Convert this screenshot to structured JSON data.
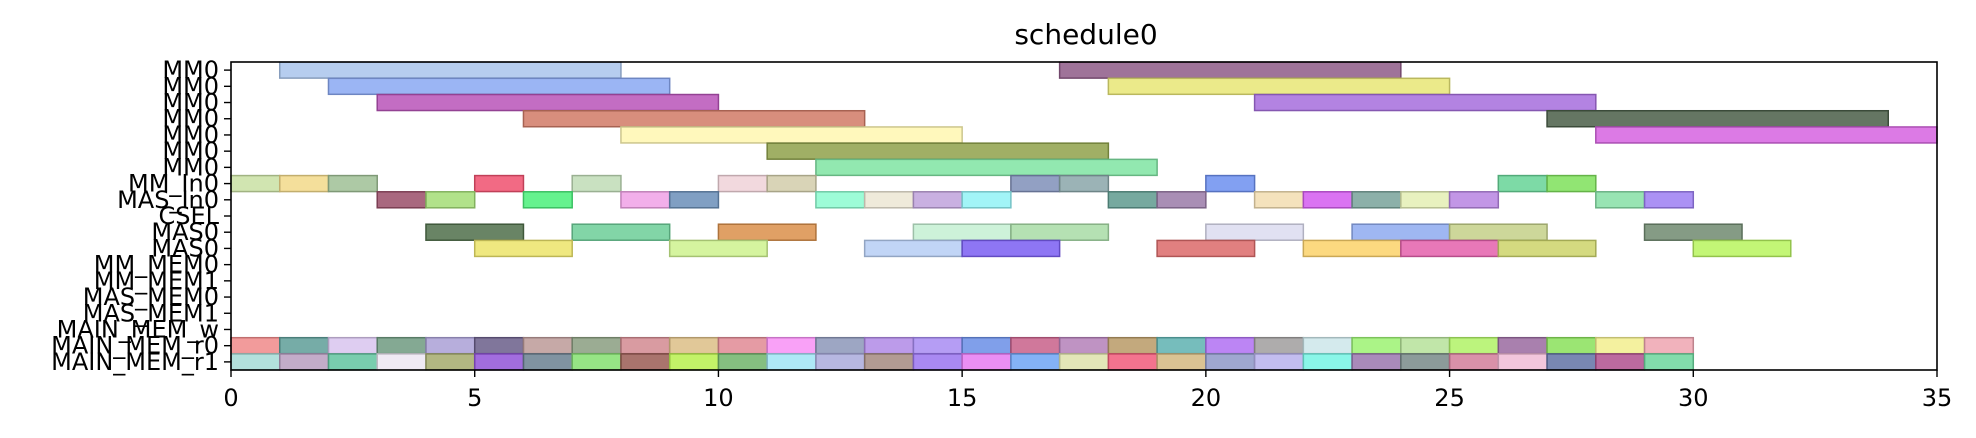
{
  "chart_data": {
    "type": "gantt",
    "title": "schedule0",
    "xlabel": "",
    "ylabel": "",
    "xlim": [
      0,
      35
    ],
    "xticks": [
      0,
      5,
      10,
      15,
      20,
      25,
      30,
      35
    ],
    "grid": false,
    "legend": "none",
    "rows": [
      {
        "label": "MM0",
        "tasks": [
          {
            "start": 1,
            "end": 8,
            "color": "#a9c4ec"
          },
          {
            "start": 17,
            "end": 24,
            "color": "#8e5a87"
          }
        ]
      },
      {
        "label": "MM0",
        "tasks": [
          {
            "start": 2,
            "end": 9,
            "color": "#8aa8f2"
          },
          {
            "start": 18,
            "end": 25,
            "color": "#e8e676"
          }
        ]
      },
      {
        "label": "MM0",
        "tasks": [
          {
            "start": 3,
            "end": 10,
            "color": "#b853b8"
          },
          {
            "start": 21,
            "end": 28,
            "color": "#a66ddd"
          }
        ]
      },
      {
        "label": "MM0",
        "tasks": [
          {
            "start": 6,
            "end": 13,
            "color": "#d17a66"
          },
          {
            "start": 27,
            "end": 34,
            "color": "#4a5e48"
          }
        ]
      },
      {
        "label": "MM0",
        "tasks": [
          {
            "start": 8,
            "end": 15,
            "color": "#fff7b0"
          },
          {
            "start": 28,
            "end": 35,
            "color": "#d663e0"
          }
        ]
      },
      {
        "label": "MM0",
        "tasks": [
          {
            "start": 11,
            "end": 18,
            "color": "#8fa14a"
          }
        ]
      },
      {
        "label": "MM0",
        "tasks": [
          {
            "start": 12,
            "end": 19,
            "color": "#7fe4a2"
          }
        ]
      },
      {
        "label": "MM_In0",
        "tasks": [
          {
            "start": 0,
            "end": 1,
            "color": "#c9e0a3"
          },
          {
            "start": 1,
            "end": 2,
            "color": "#f2d98a"
          },
          {
            "start": 2,
            "end": 3,
            "color": "#9fbf95"
          },
          {
            "start": 5,
            "end": 6,
            "color": "#f0506e"
          },
          {
            "start": 7,
            "end": 8,
            "color": "#c0dcb6"
          },
          {
            "start": 10,
            "end": 11,
            "color": "#f0d2d8"
          },
          {
            "start": 11,
            "end": 12,
            "color": "#d2cdaa"
          },
          {
            "start": 16,
            "end": 17,
            "color": "#7f8fb8"
          },
          {
            "start": 17,
            "end": 18,
            "color": "#8aa6a9"
          },
          {
            "start": 20,
            "end": 21,
            "color": "#6c8ff0"
          },
          {
            "start": 26,
            "end": 27,
            "color": "#66d497"
          },
          {
            "start": 27,
            "end": 28,
            "color": "#7ee05a"
          }
        ]
      },
      {
        "label": "MAS_In0",
        "tasks": [
          {
            "start": 3,
            "end": 4,
            "color": "#9a4d68"
          },
          {
            "start": 4,
            "end": 5,
            "color": "#a3dd76"
          },
          {
            "start": 6,
            "end": 7,
            "color": "#4af07a"
          },
          {
            "start": 8,
            "end": 9,
            "color": "#f0a1e6"
          },
          {
            "start": 9,
            "end": 10,
            "color": "#6a8eb8"
          },
          {
            "start": 12,
            "end": 13,
            "color": "#8cfcd0"
          },
          {
            "start": 13,
            "end": 14,
            "color": "#ece6d4"
          },
          {
            "start": 14,
            "end": 15,
            "color": "#c0a2dc"
          },
          {
            "start": 15,
            "end": 16,
            "color": "#92f2f6"
          },
          {
            "start": 18,
            "end": 19,
            "color": "#5e9a8e"
          },
          {
            "start": 19,
            "end": 20,
            "color": "#9a7aa8"
          },
          {
            "start": 21,
            "end": 22,
            "color": "#f2ddb0"
          },
          {
            "start": 22,
            "end": 23,
            "color": "#d45af0"
          },
          {
            "start": 23,
            "end": 24,
            "color": "#78a29a"
          },
          {
            "start": 24,
            "end": 25,
            "color": "#e4eeb4"
          },
          {
            "start": 25,
            "end": 26,
            "color": "#b784e2"
          },
          {
            "start": 28,
            "end": 29,
            "color": "#86dfa6"
          },
          {
            "start": 29,
            "end": 30,
            "color": "#9c7ef2"
          }
        ]
      },
      {
        "label": "CSEL",
        "tasks": []
      },
      {
        "label": "MAS0",
        "tasks": [
          {
            "start": 4,
            "end": 6,
            "color": "#4f6e4a"
          },
          {
            "start": 7,
            "end": 9,
            "color": "#6cce98"
          },
          {
            "start": 10,
            "end": 12,
            "color": "#da8f4a"
          },
          {
            "start": 14,
            "end": 16,
            "color": "#c4f0d2"
          },
          {
            "start": 16,
            "end": 18,
            "color": "#a8dca6"
          },
          {
            "start": 20,
            "end": 22,
            "color": "#dcdcf0"
          },
          {
            "start": 23,
            "end": 25,
            "color": "#8eaaf0"
          },
          {
            "start": 25,
            "end": 27,
            "color": "#c4d088"
          },
          {
            "start": 29,
            "end": 31,
            "color": "#708a70"
          }
        ]
      },
      {
        "label": "MAS0",
        "tasks": [
          {
            "start": 5,
            "end": 7,
            "color": "#ece46a"
          },
          {
            "start": 9,
            "end": 11,
            "color": "#cef28e"
          },
          {
            "start": 13,
            "end": 15,
            "color": "#b6cef4"
          },
          {
            "start": 15,
            "end": 17,
            "color": "#7a5ef2"
          },
          {
            "start": 19,
            "end": 21,
            "color": "#dc6a6a"
          },
          {
            "start": 22,
            "end": 24,
            "color": "#fcd26a"
          },
          {
            "start": 24,
            "end": 26,
            "color": "#e460ac"
          },
          {
            "start": 26,
            "end": 28,
            "color": "#ccd46a"
          },
          {
            "start": 30,
            "end": 32,
            "color": "#b8f45e"
          }
        ]
      },
      {
        "label": "MM_MEM0",
        "tasks": []
      },
      {
        "label": "MM_MEM1",
        "tasks": []
      },
      {
        "label": "MAS_MEM0",
        "tasks": []
      },
      {
        "label": "MAS_MEM1",
        "tasks": []
      },
      {
        "label": "MAIN_MEM_w",
        "tasks": []
      },
      {
        "label": "MAIN_MEM_r0",
        "tasks": [
          {
            "start": 0,
            "end": 1,
            "color": "#f08a8a"
          },
          {
            "start": 1,
            "end": 2,
            "color": "#5e9e98"
          },
          {
            "start": 2,
            "end": 3,
            "color": "#d8c4ee"
          },
          {
            "start": 3,
            "end": 4,
            "color": "#6e9a80"
          },
          {
            "start": 4,
            "end": 5,
            "color": "#aaa0d6"
          },
          {
            "start": 5,
            "end": 6,
            "color": "#6a5e8a"
          },
          {
            "start": 6,
            "end": 7,
            "color": "#bc9a98"
          },
          {
            "start": 7,
            "end": 8,
            "color": "#8a9e80"
          },
          {
            "start": 8,
            "end": 9,
            "color": "#d28a90"
          },
          {
            "start": 9,
            "end": 10,
            "color": "#dcbe86"
          },
          {
            "start": 10,
            "end": 11,
            "color": "#e08a94"
          },
          {
            "start": 11,
            "end": 12,
            "color": "#f890f6"
          },
          {
            "start": 12,
            "end": 13,
            "color": "#8c96b8"
          },
          {
            "start": 13,
            "end": 14,
            "color": "#b08ae6"
          },
          {
            "start": 14,
            "end": 15,
            "color": "#a88cf2"
          },
          {
            "start": 15,
            "end": 16,
            "color": "#6a8ee6"
          },
          {
            "start": 16,
            "end": 17,
            "color": "#c8608a"
          },
          {
            "start": 17,
            "end": 18,
            "color": "#b480b8"
          },
          {
            "start": 18,
            "end": 19,
            "color": "#b89a66"
          },
          {
            "start": 19,
            "end": 20,
            "color": "#5eb2b0"
          },
          {
            "start": 20,
            "end": 21,
            "color": "#b070f2"
          },
          {
            "start": 21,
            "end": 22,
            "color": "#a09e9e"
          },
          {
            "start": 22,
            "end": 23,
            "color": "#cce6ea"
          },
          {
            "start": 23,
            "end": 24,
            "color": "#9cf272"
          },
          {
            "start": 24,
            "end": 25,
            "color": "#b6e29a"
          },
          {
            "start": 25,
            "end": 26,
            "color": "#b0f266"
          },
          {
            "start": 26,
            "end": 27,
            "color": "#9a6aa0"
          },
          {
            "start": 27,
            "end": 28,
            "color": "#8ae05a"
          },
          {
            "start": 28,
            "end": 29,
            "color": "#f2ee8e"
          },
          {
            "start": 29,
            "end": 30,
            "color": "#eea4b0"
          }
        ]
      },
      {
        "label": "MAIN_MEM_r1",
        "tasks": [
          {
            "start": 0,
            "end": 1,
            "color": "#a6dcd6"
          },
          {
            "start": 1,
            "end": 2,
            "color": "#b89ec0"
          },
          {
            "start": 2,
            "end": 3,
            "color": "#62c4a0"
          },
          {
            "start": 3,
            "end": 4,
            "color": "#ece6f2"
          },
          {
            "start": 4,
            "end": 5,
            "color": "#a4aa6c"
          },
          {
            "start": 5,
            "end": 6,
            "color": "#9254d8"
          },
          {
            "start": 6,
            "end": 7,
            "color": "#6a8090"
          },
          {
            "start": 7,
            "end": 8,
            "color": "#84e070"
          },
          {
            "start": 8,
            "end": 9,
            "color": "#9a5c54"
          },
          {
            "start": 9,
            "end": 10,
            "color": "#b8f04e"
          },
          {
            "start": 10,
            "end": 11,
            "color": "#70b46a"
          },
          {
            "start": 11,
            "end": 12,
            "color": "#a0e4f4"
          },
          {
            "start": 12,
            "end": 13,
            "color": "#aaaadc"
          },
          {
            "start": 13,
            "end": 14,
            "color": "#a48a80"
          },
          {
            "start": 14,
            "end": 15,
            "color": "#9a74f0"
          },
          {
            "start": 15,
            "end": 16,
            "color": "#e67af2"
          },
          {
            "start": 16,
            "end": 17,
            "color": "#6ea4f4"
          },
          {
            "start": 17,
            "end": 18,
            "color": "#dee2ac"
          },
          {
            "start": 18,
            "end": 19,
            "color": "#f25a7a"
          },
          {
            "start": 19,
            "end": 20,
            "color": "#d4b880"
          },
          {
            "start": 20,
            "end": 21,
            "color": "#8e98c8"
          },
          {
            "start": 21,
            "end": 22,
            "color": "#b8b2ec"
          },
          {
            "start": 22,
            "end": 23,
            "color": "#76f4e4"
          },
          {
            "start": 23,
            "end": 24,
            "color": "#9a76ae"
          },
          {
            "start": 24,
            "end": 25,
            "color": "#788a88"
          },
          {
            "start": 25,
            "end": 26,
            "color": "#d27e9a"
          },
          {
            "start": 26,
            "end": 27,
            "color": "#f0bcd6"
          },
          {
            "start": 27,
            "end": 28,
            "color": "#6272a6"
          },
          {
            "start": 28,
            "end": 29,
            "color": "#b0508e"
          },
          {
            "start": 29,
            "end": 30,
            "color": "#6cd69c"
          }
        ]
      }
    ]
  }
}
